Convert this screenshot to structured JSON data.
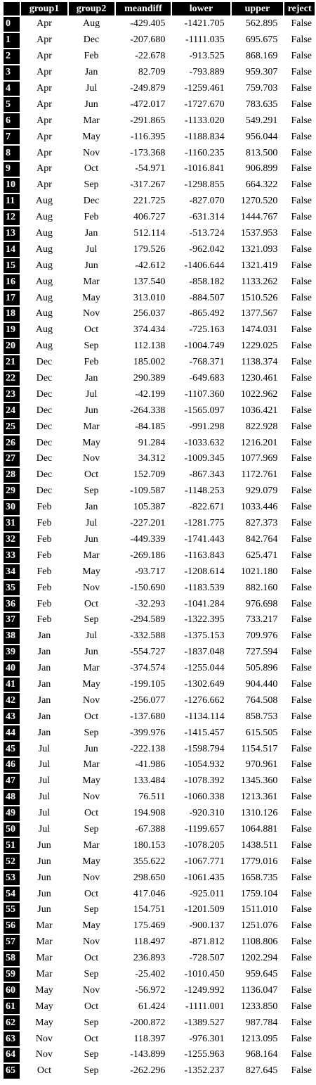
{
  "columns": [
    "",
    "group1",
    "group2",
    "meandiff",
    "lower",
    "upper",
    "reject"
  ],
  "rows": [
    [
      "0",
      "Apr",
      "Aug",
      "-429.405",
      "-1421.705",
      "562.895",
      "False"
    ],
    [
      "1",
      "Apr",
      "Dec",
      "-207.680",
      "-1111.035",
      "695.675",
      "False"
    ],
    [
      "2",
      "Apr",
      "Feb",
      "-22.678",
      "-913.525",
      "868.169",
      "False"
    ],
    [
      "3",
      "Apr",
      "Jan",
      "82.709",
      "-793.889",
      "959.307",
      "False"
    ],
    [
      "4",
      "Apr",
      "Jul",
      "-249.879",
      "-1259.461",
      "759.703",
      "False"
    ],
    [
      "5",
      "Apr",
      "Jun",
      "-472.017",
      "-1727.670",
      "783.635",
      "False"
    ],
    [
      "6",
      "Apr",
      "Mar",
      "-291.865",
      "-1133.020",
      "549.291",
      "False"
    ],
    [
      "7",
      "Apr",
      "May",
      "-116.395",
      "-1188.834",
      "956.044",
      "False"
    ],
    [
      "8",
      "Apr",
      "Nov",
      "-173.368",
      "-1160.235",
      "813.500",
      "False"
    ],
    [
      "9",
      "Apr",
      "Oct",
      "-54.971",
      "-1016.841",
      "906.899",
      "False"
    ],
    [
      "10",
      "Apr",
      "Sep",
      "-317.267",
      "-1298.855",
      "664.322",
      "False"
    ],
    [
      "11",
      "Aug",
      "Dec",
      "221.725",
      "-827.070",
      "1270.520",
      "False"
    ],
    [
      "12",
      "Aug",
      "Feb",
      "406.727",
      "-631.314",
      "1444.767",
      "False"
    ],
    [
      "13",
      "Aug",
      "Jan",
      "512.114",
      "-513.724",
      "1537.953",
      "False"
    ],
    [
      "14",
      "Aug",
      "Jul",
      "179.526",
      "-962.042",
      "1321.093",
      "False"
    ],
    [
      "15",
      "Aug",
      "Jun",
      "-42.612",
      "-1406.644",
      "1321.419",
      "False"
    ],
    [
      "16",
      "Aug",
      "Mar",
      "137.540",
      "-858.182",
      "1133.262",
      "False"
    ],
    [
      "17",
      "Aug",
      "May",
      "313.010",
      "-884.507",
      "1510.526",
      "False"
    ],
    [
      "18",
      "Aug",
      "Nov",
      "256.037",
      "-865.492",
      "1377.567",
      "False"
    ],
    [
      "19",
      "Aug",
      "Oct",
      "374.434",
      "-725.163",
      "1474.031",
      "False"
    ],
    [
      "20",
      "Aug",
      "Sep",
      "112.138",
      "-1004.749",
      "1229.025",
      "False"
    ],
    [
      "21",
      "Dec",
      "Feb",
      "185.002",
      "-768.371",
      "1138.374",
      "False"
    ],
    [
      "22",
      "Dec",
      "Jan",
      "290.389",
      "-649.683",
      "1230.461",
      "False"
    ],
    [
      "23",
      "Dec",
      "Jul",
      "-42.199",
      "-1107.360",
      "1022.962",
      "False"
    ],
    [
      "24",
      "Dec",
      "Jun",
      "-264.338",
      "-1565.097",
      "1036.421",
      "False"
    ],
    [
      "25",
      "Dec",
      "Mar",
      "-84.185",
      "-991.298",
      "822.928",
      "False"
    ],
    [
      "26",
      "Dec",
      "May",
      "91.284",
      "-1033.632",
      "1216.201",
      "False"
    ],
    [
      "27",
      "Dec",
      "Nov",
      "34.312",
      "-1009.345",
      "1077.969",
      "False"
    ],
    [
      "28",
      "Dec",
      "Oct",
      "152.709",
      "-867.343",
      "1172.761",
      "False"
    ],
    [
      "29",
      "Dec",
      "Sep",
      "-109.587",
      "-1148.253",
      "929.079",
      "False"
    ],
    [
      "30",
      "Feb",
      "Jan",
      "105.387",
      "-822.671",
      "1033.446",
      "False"
    ],
    [
      "31",
      "Feb",
      "Jul",
      "-227.201",
      "-1281.775",
      "827.373",
      "False"
    ],
    [
      "32",
      "Feb",
      "Jun",
      "-449.339",
      "-1741.443",
      "842.764",
      "False"
    ],
    [
      "33",
      "Feb",
      "Mar",
      "-269.186",
      "-1163.843",
      "625.471",
      "False"
    ],
    [
      "34",
      "Feb",
      "May",
      "-93.717",
      "-1208.614",
      "1021.180",
      "False"
    ],
    [
      "35",
      "Feb",
      "Nov",
      "-150.690",
      "-1183.539",
      "882.160",
      "False"
    ],
    [
      "36",
      "Feb",
      "Oct",
      "-32.293",
      "-1041.284",
      "976.698",
      "False"
    ],
    [
      "37",
      "Feb",
      "Sep",
      "-294.589",
      "-1322.395",
      "733.217",
      "False"
    ],
    [
      "38",
      "Jan",
      "Jul",
      "-332.588",
      "-1375.153",
      "709.976",
      "False"
    ],
    [
      "39",
      "Jan",
      "Jun",
      "-554.727",
      "-1837.048",
      "727.594",
      "False"
    ],
    [
      "40",
      "Jan",
      "Mar",
      "-374.574",
      "-1255.044",
      "505.896",
      "False"
    ],
    [
      "41",
      "Jan",
      "May",
      "-199.105",
      "-1302.649",
      "904.440",
      "False"
    ],
    [
      "42",
      "Jan",
      "Nov",
      "-256.077",
      "-1276.662",
      "764.508",
      "False"
    ],
    [
      "43",
      "Jan",
      "Oct",
      "-137.680",
      "-1134.114",
      "858.753",
      "False"
    ],
    [
      "44",
      "Jan",
      "Sep",
      "-399.976",
      "-1415.457",
      "615.505",
      "False"
    ],
    [
      "45",
      "Jul",
      "Jun",
      "-222.138",
      "-1598.794",
      "1154.517",
      "False"
    ],
    [
      "46",
      "Jul",
      "Mar",
      "-41.986",
      "-1054.932",
      "970.961",
      "False"
    ],
    [
      "47",
      "Jul",
      "May",
      "133.484",
      "-1078.392",
      "1345.360",
      "False"
    ],
    [
      "48",
      "Jul",
      "Nov",
      "76.511",
      "-1060.338",
      "1213.361",
      "False"
    ],
    [
      "49",
      "Jul",
      "Oct",
      "194.908",
      "-920.310",
      "1310.126",
      "False"
    ],
    [
      "50",
      "Jul",
      "Sep",
      "-67.388",
      "-1199.657",
      "1064.881",
      "False"
    ],
    [
      "51",
      "Jun",
      "Mar",
      "180.153",
      "-1078.205",
      "1438.511",
      "False"
    ],
    [
      "52",
      "Jun",
      "May",
      "355.622",
      "-1067.771",
      "1779.016",
      "False"
    ],
    [
      "53",
      "Jun",
      "Nov",
      "298.650",
      "-1061.435",
      "1658.735",
      "False"
    ],
    [
      "54",
      "Jun",
      "Oct",
      "417.046",
      "-925.011",
      "1759.104",
      "False"
    ],
    [
      "55",
      "Jun",
      "Sep",
      "154.751",
      "-1201.509",
      "1511.010",
      "False"
    ],
    [
      "56",
      "Mar",
      "May",
      "175.469",
      "-900.137",
      "1251.076",
      "False"
    ],
    [
      "57",
      "Mar",
      "Nov",
      "118.497",
      "-871.812",
      "1108.806",
      "False"
    ],
    [
      "58",
      "Mar",
      "Oct",
      "236.893",
      "-728.507",
      "1202.294",
      "False"
    ],
    [
      "59",
      "Mar",
      "Sep",
      "-25.402",
      "-1010.450",
      "959.645",
      "False"
    ],
    [
      "60",
      "May",
      "Nov",
      "-56.972",
      "-1249.992",
      "1136.047",
      "False"
    ],
    [
      "61",
      "May",
      "Oct",
      "61.424",
      "-1111.001",
      "1233.850",
      "False"
    ],
    [
      "62",
      "May",
      "Sep",
      "-200.872",
      "-1389.527",
      "987.784",
      "False"
    ],
    [
      "63",
      "Nov",
      "Oct",
      "118.397",
      "-976.301",
      "1213.095",
      "False"
    ],
    [
      "64",
      "Nov",
      "Sep",
      "-143.899",
      "-1255.963",
      "968.164",
      "False"
    ],
    [
      "65",
      "Oct",
      "Sep",
      "-262.296",
      "-1352.237",
      "827.645",
      "False"
    ]
  ]
}
